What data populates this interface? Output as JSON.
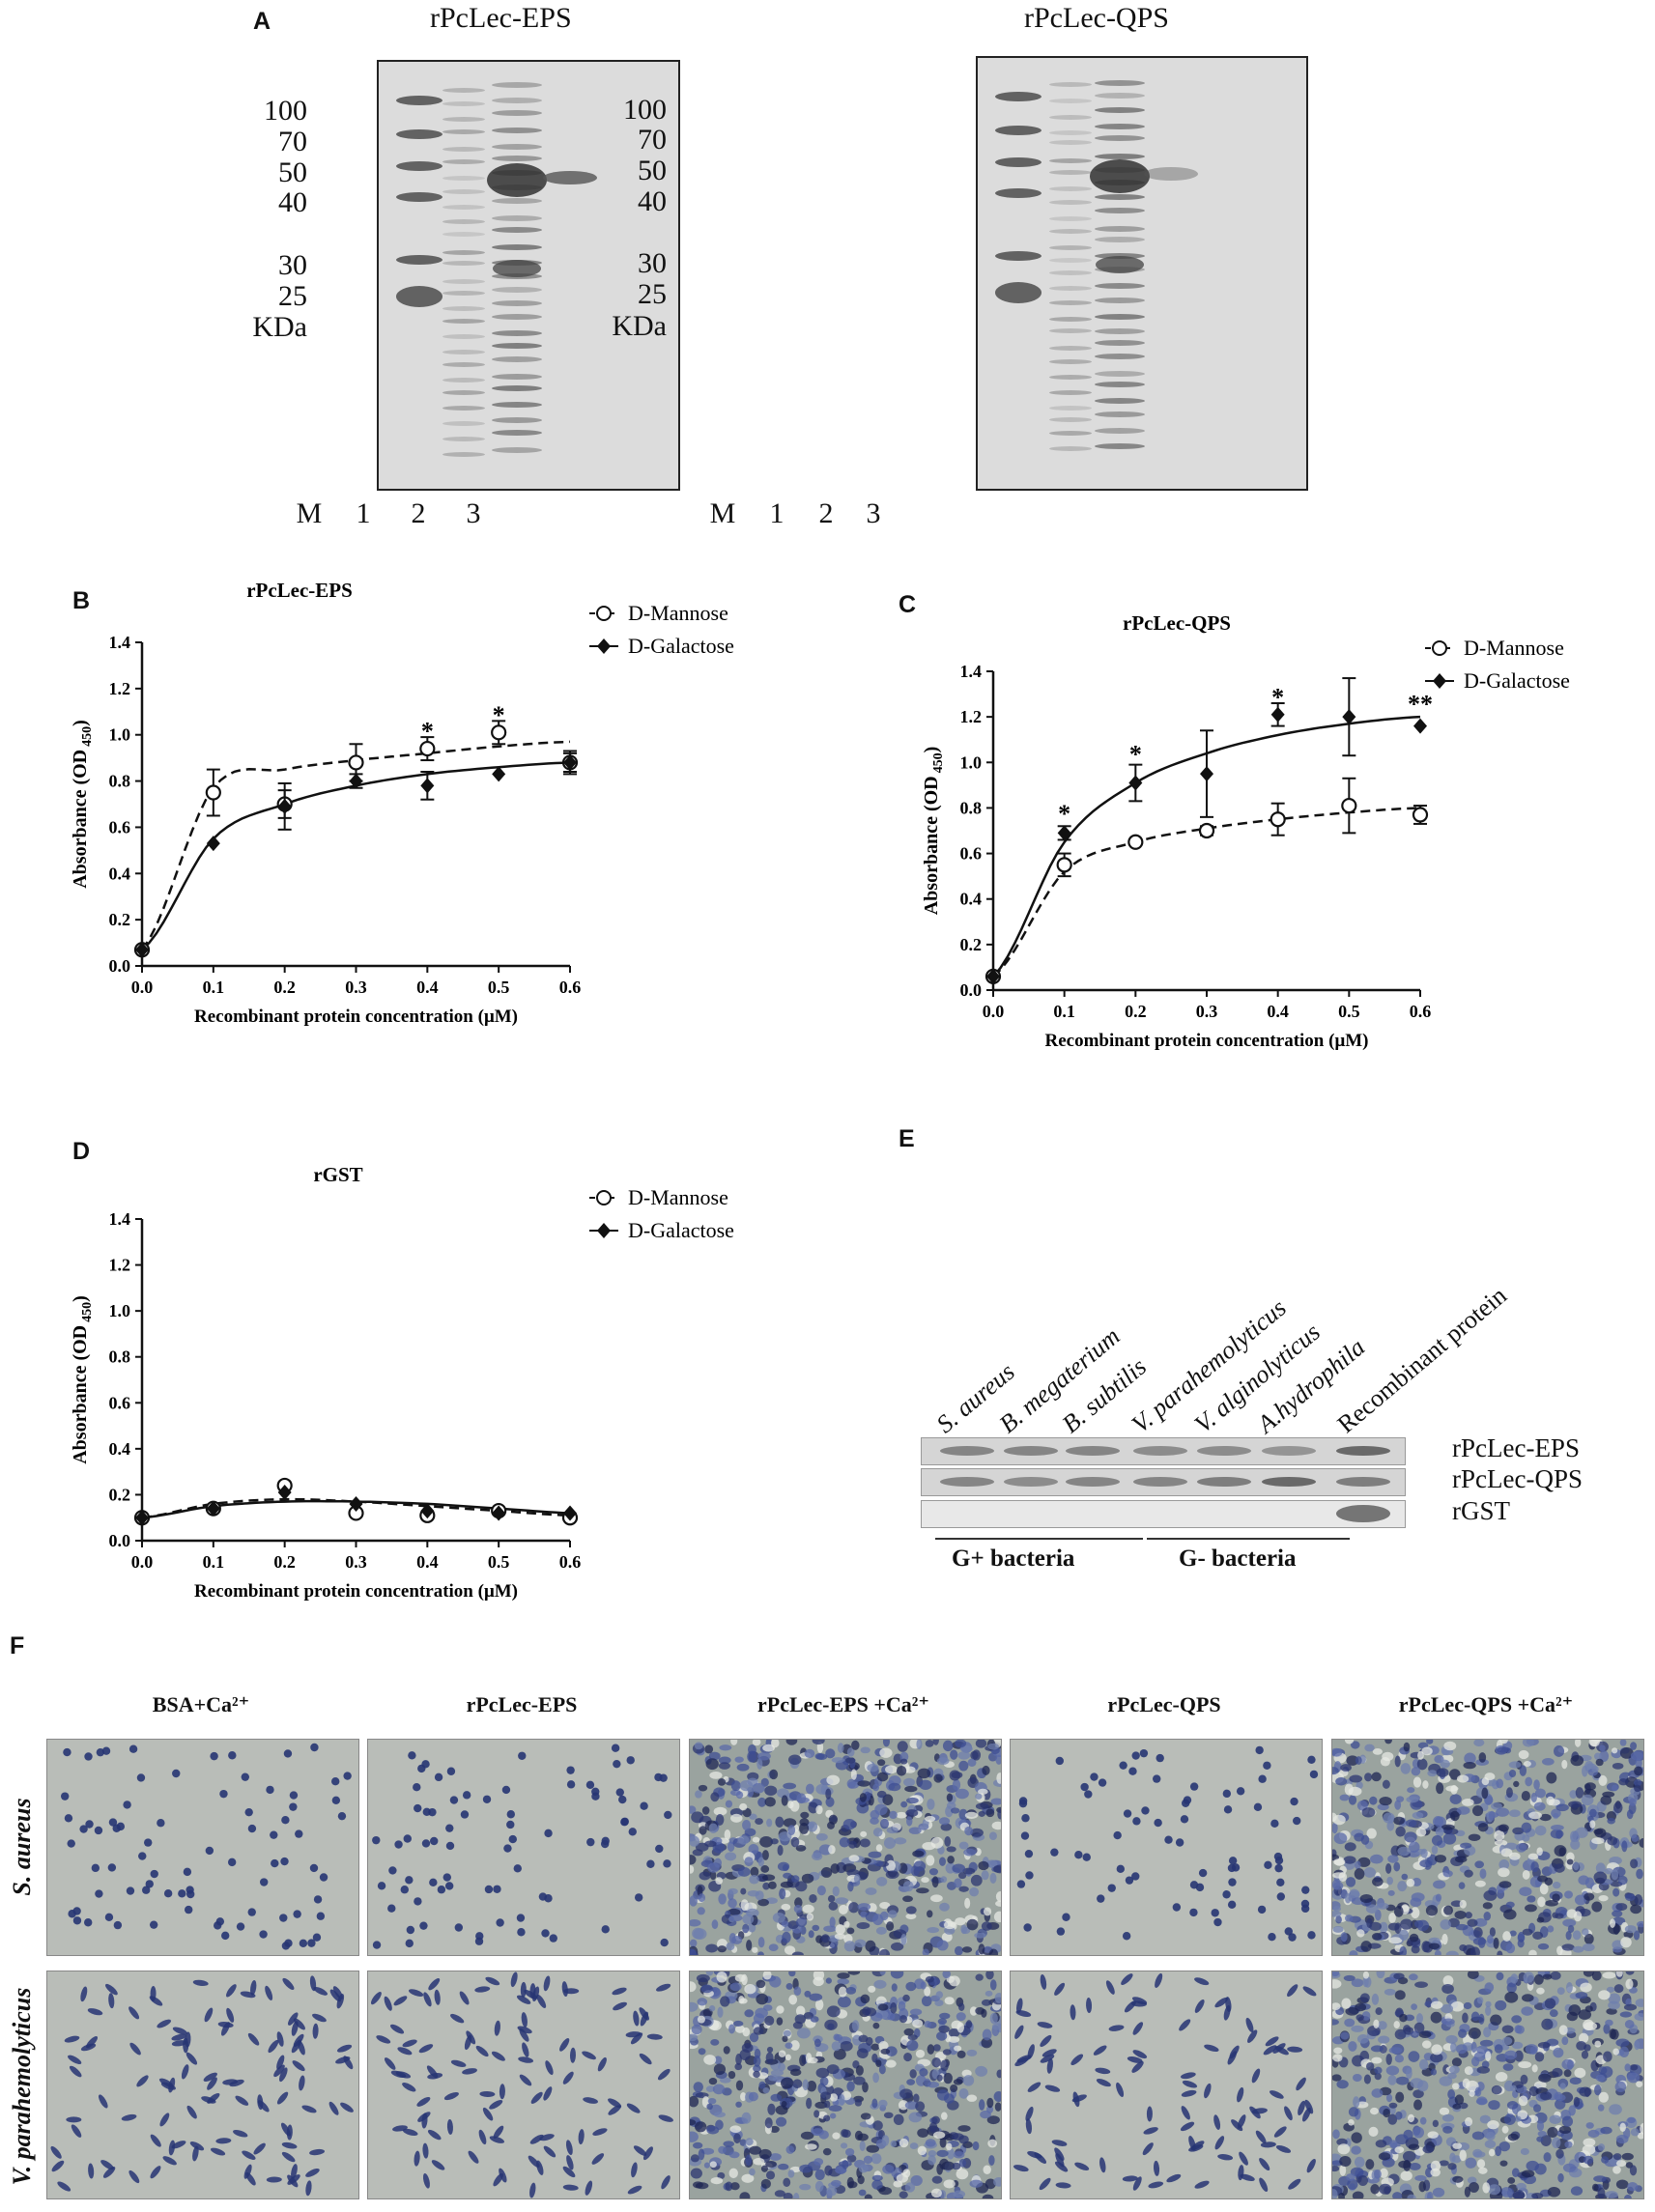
{
  "panel_a": {
    "letter": "A",
    "gels": [
      {
        "title": "rPcLec-EPS",
        "markers": [
          "100",
          "70",
          "50",
          "40",
          "30",
          "25",
          "KDa"
        ],
        "lanes": [
          "M",
          "1",
          "2",
          "3"
        ]
      },
      {
        "title": "rPcLec-QPS",
        "markers": [
          "100",
          "70",
          "50",
          "40",
          "30",
          "25",
          "KDa"
        ],
        "lanes": [
          "M",
          "1",
          "2",
          "3"
        ]
      }
    ]
  },
  "chart_data": [
    {
      "panel": "B",
      "type": "line",
      "title": "rPcLec-EPS",
      "xlabel": "Recombinant protein concentration  (μM)",
      "ylabel": "Absorbance (OD 450)",
      "xlim": [
        0,
        0.6
      ],
      "ylim": [
        0,
        1.4
      ],
      "xticks": [
        "0.0",
        "0.1",
        "0.2",
        "0.3",
        "0.4",
        "0.5",
        "0.6"
      ],
      "yticks": [
        "0.0",
        "0.2",
        "0.4",
        "0.6",
        "0.8",
        "1.0",
        "1.2",
        "1.4"
      ],
      "legend_position": "top-right",
      "series": [
        {
          "name": "D-Mannose",
          "marker": "open-circle",
          "line": "dashed",
          "x": [
            0,
            0.1,
            0.2,
            0.3,
            0.4,
            0.5,
            0.6
          ],
          "y": [
            0.07,
            0.75,
            0.7,
            0.88,
            0.94,
            1.01,
            0.88
          ],
          "err": [
            0,
            0.1,
            0.06,
            0.08,
            0.05,
            0.05,
            0.04
          ],
          "fit": [
            0.07,
            0.77,
            0.85,
            0.89,
            0.92,
            0.95,
            0.97
          ]
        },
        {
          "name": "D-Galactose",
          "marker": "filled-diamond",
          "line": "solid",
          "x": [
            0,
            0.1,
            0.2,
            0.3,
            0.4,
            0.5,
            0.6
          ],
          "y": [
            0.07,
            0.53,
            0.69,
            0.8,
            0.78,
            0.83,
            0.88
          ],
          "err": [
            0,
            0,
            0.1,
            0.03,
            0.06,
            0,
            0.05
          ],
          "fit": [
            0.07,
            0.55,
            0.7,
            0.78,
            0.83,
            0.86,
            0.88
          ]
        }
      ],
      "annotations": [
        {
          "x": 0.4,
          "y": 1.03,
          "text": "*"
        },
        {
          "x": 0.5,
          "y": 1.1,
          "text": "*"
        }
      ]
    },
    {
      "panel": "C",
      "type": "line",
      "title": "rPcLec-QPS",
      "xlabel": "Recombinant protein concentration  (μM)",
      "ylabel": "Absorbance (OD 450)",
      "xlim": [
        0,
        0.6
      ],
      "ylim": [
        0,
        1.4
      ],
      "xticks": [
        "0.0",
        "0.1",
        "0.2",
        "0.3",
        "0.4",
        "0.5",
        "0.6"
      ],
      "yticks": [
        "0.0",
        "0.2",
        "0.4",
        "0.6",
        "0.8",
        "1.0",
        "1.2",
        "1.4"
      ],
      "legend_position": "top-right",
      "series": [
        {
          "name": "D-Mannose",
          "marker": "open-circle",
          "line": "dashed",
          "x": [
            0,
            0.1,
            0.2,
            0.3,
            0.4,
            0.5,
            0.6
          ],
          "y": [
            0.06,
            0.55,
            0.65,
            0.7,
            0.75,
            0.81,
            0.77
          ],
          "err": [
            0,
            0.05,
            0.01,
            0.02,
            0.07,
            0.12,
            0.04
          ],
          "fit": [
            0.06,
            0.52,
            0.65,
            0.71,
            0.75,
            0.78,
            0.8
          ]
        },
        {
          "name": "D-Galactose",
          "marker": "filled-diamond",
          "line": "solid",
          "x": [
            0,
            0.1,
            0.2,
            0.3,
            0.4,
            0.5,
            0.6
          ],
          "y": [
            0.06,
            0.69,
            0.91,
            0.95,
            1.21,
            1.2,
            1.16
          ],
          "err": [
            0,
            0.03,
            0.08,
            0.19,
            0.05,
            0.17,
            0
          ],
          "fit": [
            0.06,
            0.65,
            0.91,
            1.04,
            1.12,
            1.17,
            1.2
          ]
        }
      ],
      "annotations": [
        {
          "x": 0.1,
          "y": 0.79,
          "text": "*"
        },
        {
          "x": 0.2,
          "y": 1.05,
          "text": "*"
        },
        {
          "x": 0.4,
          "y": 1.3,
          "text": "*"
        },
        {
          "x": 0.6,
          "y": 1.27,
          "text": "**"
        }
      ]
    },
    {
      "panel": "D",
      "type": "line",
      "title": "rGST",
      "xlabel": "Recombinant protein concentration  (μM)",
      "ylabel": "Absorbance (OD 450)",
      "xlim": [
        0,
        0.6
      ],
      "ylim": [
        0,
        1.4
      ],
      "xticks": [
        "0.0",
        "0.1",
        "0.2",
        "0.3",
        "0.4",
        "0.5",
        "0.6"
      ],
      "yticks": [
        "0.0",
        "0.2",
        "0.4",
        "0.6",
        "0.8",
        "1.0",
        "1.2",
        "1.4"
      ],
      "legend_position": "top-right",
      "series": [
        {
          "name": "D-Mannose",
          "marker": "open-circle",
          "line": "dashed",
          "x": [
            0,
            0.1,
            0.2,
            0.3,
            0.4,
            0.5,
            0.6
          ],
          "y": [
            0.1,
            0.14,
            0.24,
            0.12,
            0.11,
            0.13,
            0.1
          ],
          "err": [
            0,
            0,
            0,
            0,
            0,
            0,
            0
          ],
          "fit": [
            0.1,
            0.16,
            0.18,
            0.17,
            0.15,
            0.13,
            0.11
          ]
        },
        {
          "name": "D-Galactose",
          "marker": "filled-diamond",
          "line": "solid",
          "x": [
            0,
            0.1,
            0.2,
            0.3,
            0.4,
            0.5,
            0.6
          ],
          "y": [
            0.1,
            0.14,
            0.21,
            0.16,
            0.13,
            0.12,
            0.12
          ],
          "err": [
            0,
            0,
            0,
            0,
            0,
            0,
            0
          ],
          "fit": [
            0.1,
            0.15,
            0.17,
            0.17,
            0.16,
            0.14,
            0.12
          ]
        }
      ],
      "annotations": []
    }
  ],
  "panel_e": {
    "letter": "E",
    "species": [
      "S. aureus",
      "B. megaterium",
      "B. subtilis",
      "V. parahemolyticus",
      "V. alginolyticus",
      "A.hydrophila",
      "Recombinant protein"
    ],
    "rows": [
      "rPcLec-EPS",
      "rPcLec-QPS",
      "rGST"
    ],
    "groups": [
      "G+ bacteria",
      "G- bacteria"
    ]
  },
  "panel_f": {
    "letter": "F",
    "columns": [
      "BSA+Ca²⁺",
      "rPcLec-EPS",
      "rPcLec-EPS +Ca²⁺",
      "rPcLec-QPS",
      "rPcLec-QPS +Ca²⁺"
    ],
    "rows": [
      "S. aureus",
      "V. parahemolyticus"
    ]
  },
  "colors": {
    "axis": "#111111",
    "gel_bg": "#dcdcdc",
    "band": "#555555",
    "micro_bg": "#b9bdb8",
    "cell_blue": "#2e3d80"
  }
}
